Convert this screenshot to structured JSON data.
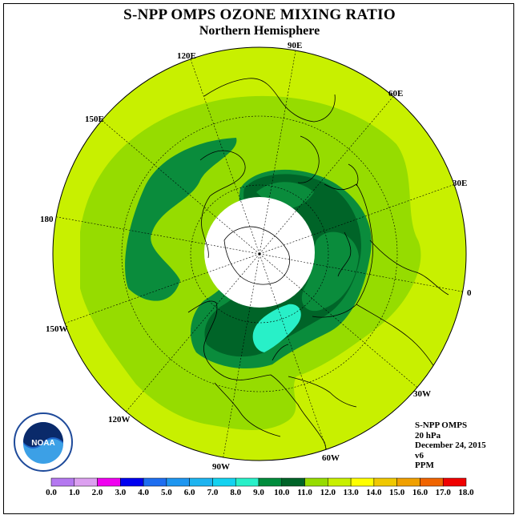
{
  "title": "S-NPP OMPS OZONE MIXING RATIO",
  "subtitle": "Northern Hemisphere",
  "longitude_labels": [
    "90E",
    "60E",
    "30E",
    "0",
    "30W",
    "60W",
    "90W",
    "120W",
    "150W",
    "180",
    "150E",
    "120E"
  ],
  "info": {
    "instrument": "S-NPP OMPS",
    "level": "20 hPa",
    "date": "December 24, 2015",
    "version": "v6",
    "unit": "PPM"
  },
  "colorbar": {
    "labels": [
      "0.0",
      "1.0",
      "2.0",
      "3.0",
      "4.0",
      "5.0",
      "6.0",
      "7.0",
      "8.0",
      "9.0",
      "10.0",
      "11.0",
      "12.0",
      "13.0",
      "14.0",
      "15.0",
      "16.0",
      "17.0",
      "18.0"
    ],
    "colors": [
      "#b478f0",
      "#dca0f0",
      "#f000f0",
      "#0000f0",
      "#1e6ef0",
      "#1e96f0",
      "#1eb4f0",
      "#14d2f0",
      "#28f0c8",
      "#008c3c",
      "#006428",
      "#96dc00",
      "#c8f000",
      "#ffff00",
      "#f0c800",
      "#f0a000",
      "#f06400",
      "#f00000",
      "#8c5028"
    ]
  },
  "map_colors": {
    "level_9": "#0a8c3c",
    "level_10": "#006428",
    "level_11": "#96dc00",
    "level_12": "#c8f000",
    "level_8": "#28f0c8",
    "no_data": "#ffffff"
  },
  "logo_text": "NOAA"
}
